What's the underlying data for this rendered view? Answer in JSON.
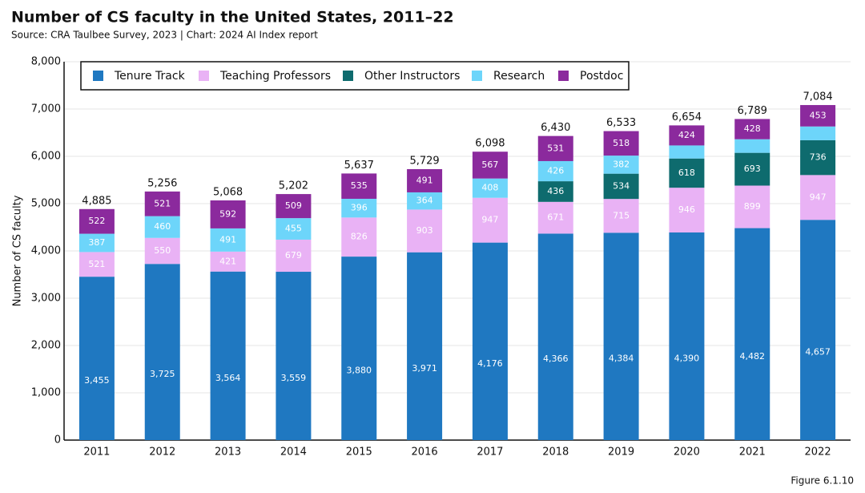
{
  "chart_data": {
    "type": "stacked_bar",
    "title": "Number of CS faculty in the United States, 2011–22",
    "subtitle": "Source: CRA Taulbee Survey, 2023 | Chart: 2024 AI Index report",
    "y_label": "Number of CS faculty",
    "figure_label": "Figure 6.1.10",
    "categories": [
      "2011",
      "2012",
      "2013",
      "2014",
      "2015",
      "2016",
      "2017",
      "2018",
      "2019",
      "2020",
      "2021",
      "2022"
    ],
    "series": [
      {
        "name": "Tenure Track",
        "color": "#1f78c1",
        "values": [
          3455,
          3725,
          3564,
          3559,
          3880,
          3971,
          4176,
          4366,
          4384,
          4390,
          4482,
          4657
        ],
        "value_labels": [
          "3,455",
          "3,725",
          "3,564",
          "3,559",
          "3,880",
          "3,971",
          "4,176",
          "4,366",
          "4,384",
          "4,390",
          "4,482",
          "4,657"
        ]
      },
      {
        "name": "Teaching Professors",
        "color": "#e9b2f5",
        "values": [
          521,
          550,
          421,
          679,
          826,
          903,
          947,
          671,
          715,
          946,
          899,
          947
        ]
      },
      {
        "name": "Other Instructors",
        "color": "#0e6b6e",
        "values": [
          null,
          null,
          null,
          null,
          null,
          null,
          null,
          436,
          534,
          618,
          693,
          736
        ]
      },
      {
        "name": "Research",
        "color": "#6dd5fa",
        "values": [
          387,
          460,
          491,
          455,
          396,
          364,
          408,
          426,
          382,
          276,
          287,
          291
        ],
        "value_labels": [
          "387",
          "460",
          "491",
          "455",
          "396",
          "364",
          "408",
          "426",
          "382",
          null,
          null,
          null
        ]
      },
      {
        "name": "Postdoc",
        "color": "#8b2a9d",
        "values": [
          522,
          521,
          592,
          509,
          535,
          491,
          567,
          531,
          518,
          424,
          428,
          453
        ]
      }
    ],
    "totals": {
      "values": [
        4885,
        5256,
        5068,
        5202,
        5637,
        5729,
        6098,
        6430,
        6533,
        6654,
        6789,
        7084
      ],
      "value_labels": [
        "4,885",
        "5,256",
        "5,068",
        "5,202",
        "5,637",
        "5,729",
        "6,098",
        "6,430",
        "6,533",
        "6,654",
        "6,789",
        "7,084"
      ]
    },
    "ylim": [
      0,
      8000
    ],
    "yticks": [
      0,
      {
        "value": 1000,
        "label": "1,000"
      },
      {
        "value": 2000,
        "label": "2,000"
      },
      {
        "value": 3000,
        "label": "3,000"
      },
      {
        "value": 4000,
        "label": "4,000"
      },
      {
        "value": 5000,
        "label": "5,000"
      },
      {
        "value": 6000,
        "label": "6,000"
      },
      {
        "value": 7000,
        "label": "7,000"
      },
      {
        "value": 8000,
        "label": "8,000"
      }
    ],
    "grid": true,
    "legend": "upper left"
  }
}
